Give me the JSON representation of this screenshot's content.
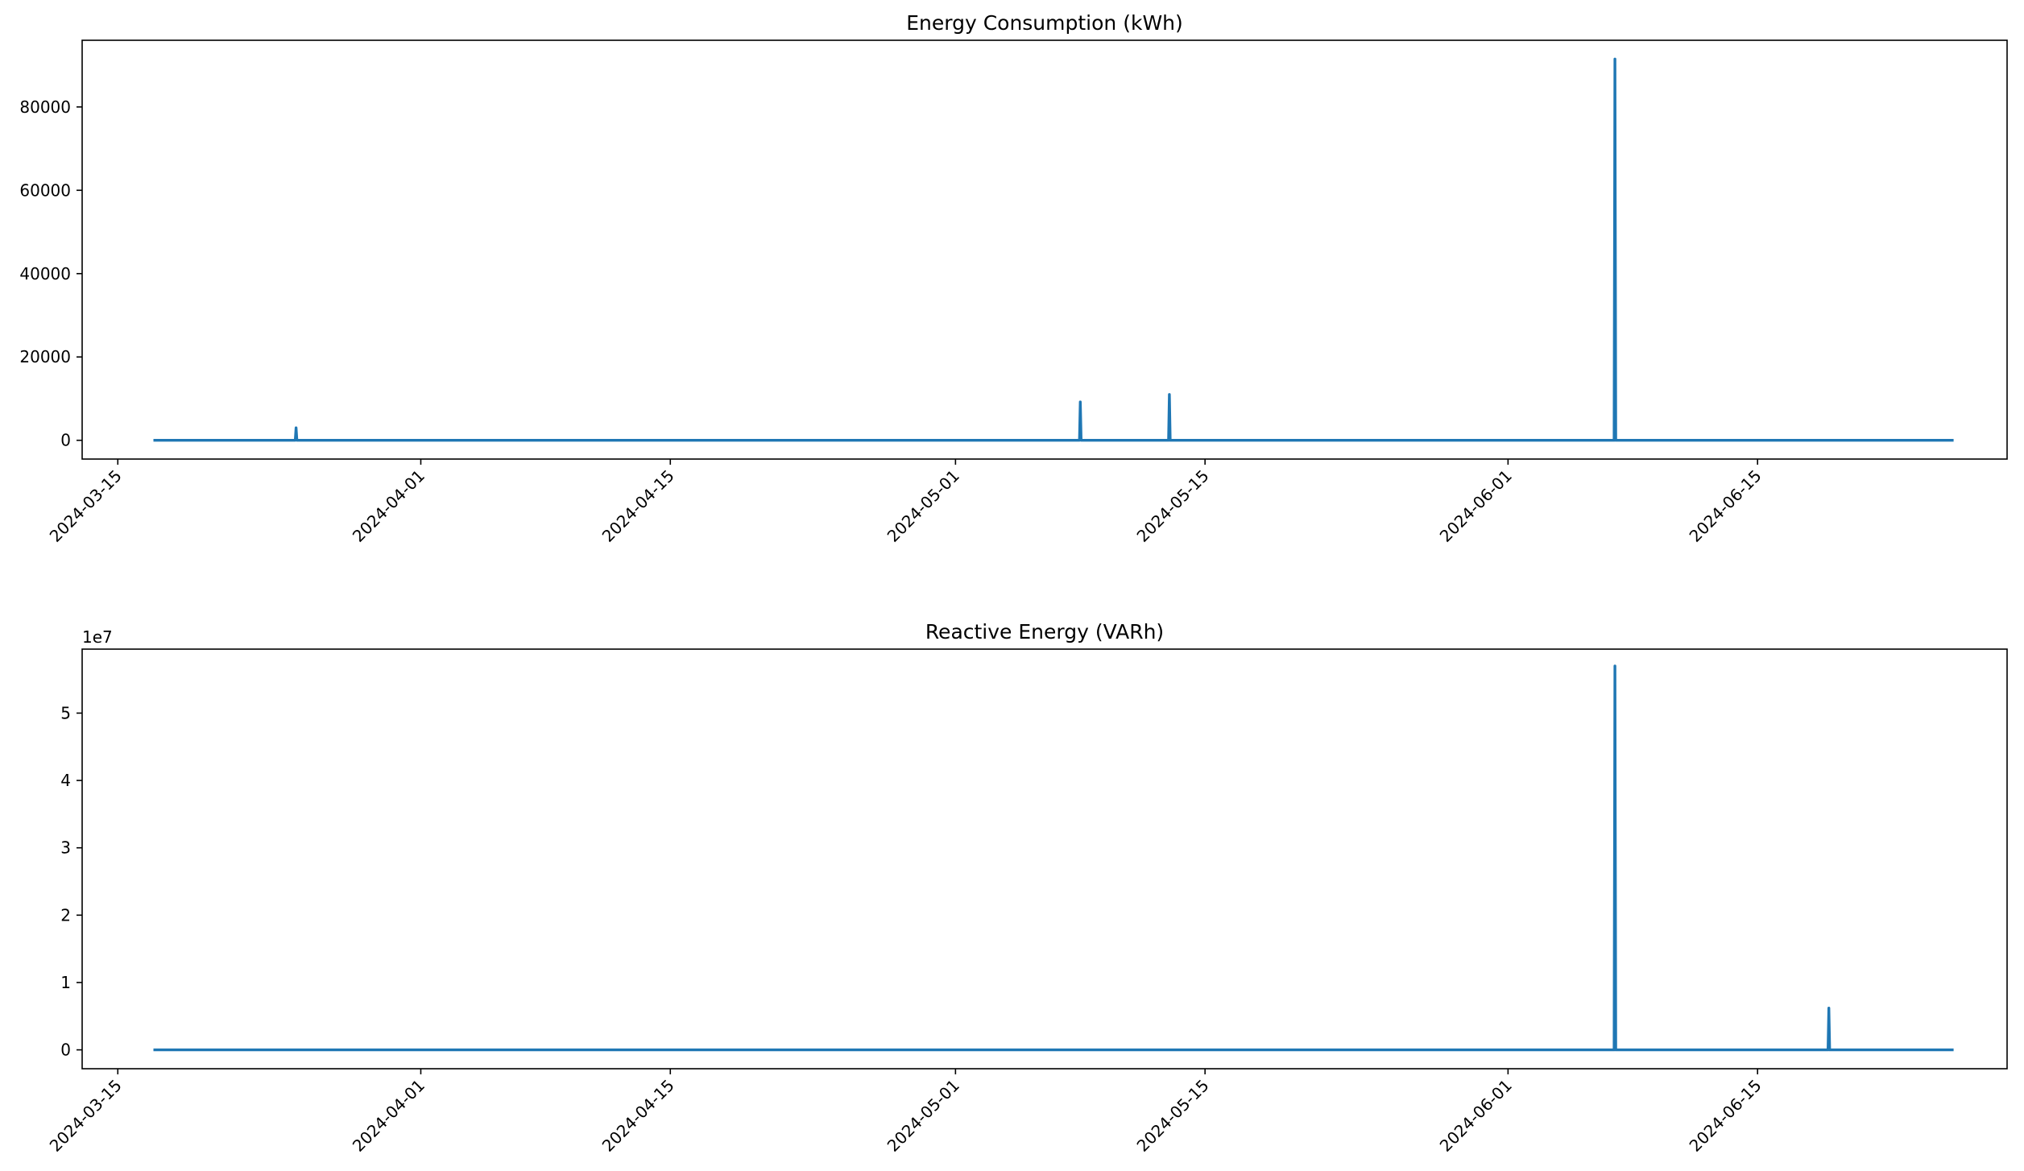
{
  "chart_data": [
    {
      "type": "line",
      "title": "Energy Consumption (kWh)",
      "xlabel": "",
      "ylabel": "",
      "xlim": [
        "2024-03-13",
        "2024-06-29"
      ],
      "ylim": [
        -4500,
        96000
      ],
      "x_ticks": [
        "2024-03-15",
        "2024-04-01",
        "2024-04-15",
        "2024-05-01",
        "2024-05-15",
        "2024-06-01",
        "2024-06-15"
      ],
      "y_ticks": [
        0,
        20000,
        40000,
        60000,
        80000
      ],
      "y_tick_labels": [
        "0",
        "20000",
        "40000",
        "60000",
        "80000"
      ],
      "y_offset_label": "",
      "grid": false,
      "color": "#1f77b4",
      "baseline": 0,
      "x_range": [
        "2024-03-17",
        "2024-06-26"
      ],
      "spikes": [
        {
          "x": "2024-03-25",
          "y": 3000
        },
        {
          "x": "2024-05-08",
          "y": 9200
        },
        {
          "x": "2024-05-13",
          "y": 11000
        },
        {
          "x": "2024-06-07",
          "y": 91500
        }
      ]
    },
    {
      "type": "line",
      "title": "Reactive Energy (VARh)",
      "xlabel": "",
      "ylabel": "",
      "xlim": [
        "2024-03-13",
        "2024-06-29"
      ],
      "ylim": [
        -0.28,
        5.95
      ],
      "x_ticks": [
        "2024-03-15",
        "2024-04-01",
        "2024-04-15",
        "2024-05-01",
        "2024-05-15",
        "2024-06-01",
        "2024-06-15"
      ],
      "y_ticks": [
        0,
        1,
        2,
        3,
        4,
        5
      ],
      "y_tick_labels": [
        "0",
        "1",
        "2",
        "3",
        "4",
        "5"
      ],
      "y_offset_label": "1e7",
      "grid": false,
      "color": "#1f77b4",
      "baseline": 0,
      "x_range": [
        "2024-03-17",
        "2024-06-26"
      ],
      "spikes": [
        {
          "x": "2024-06-07",
          "y": 5.7
        },
        {
          "x": "2024-06-19",
          "y": 0.62
        }
      ]
    }
  ]
}
